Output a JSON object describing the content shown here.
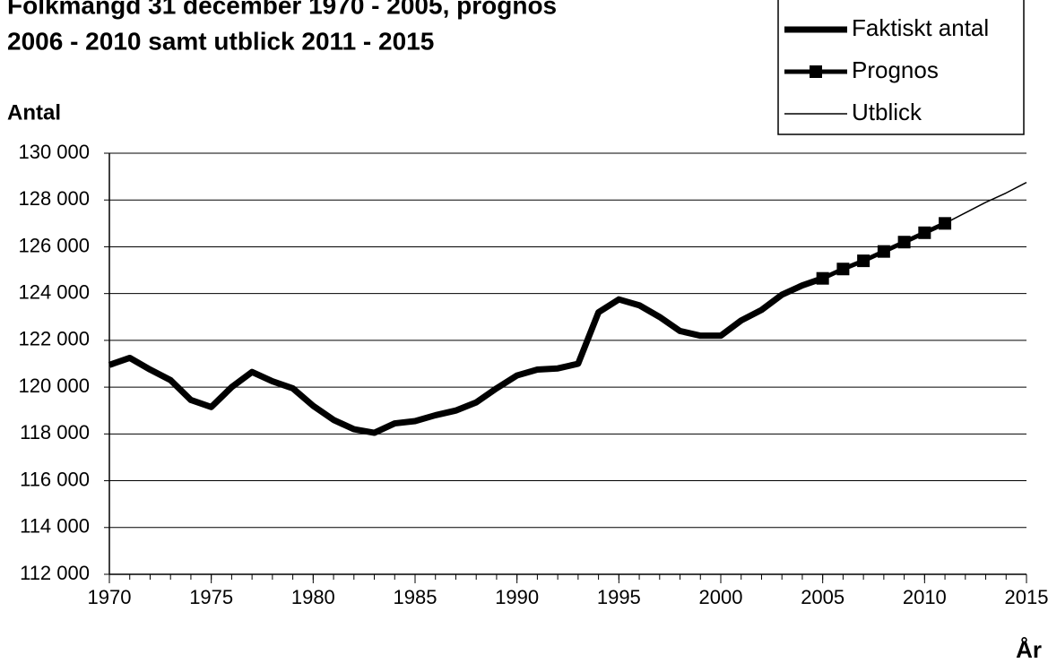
{
  "chart_data": {
    "type": "line",
    "title": [
      "Folkmängd 31 december 1970 - 2005, prognos",
      "2006 - 2010 samt utblick 2011 - 2015"
    ],
    "ylabel": "Antal",
    "xlabel": "År",
    "x": [
      1970,
      1971,
      1972,
      1973,
      1974,
      1975,
      1976,
      1977,
      1978,
      1979,
      1980,
      1981,
      1982,
      1983,
      1984,
      1985,
      1986,
      1987,
      1988,
      1989,
      1990,
      1991,
      1992,
      1993,
      1994,
      1995,
      1996,
      1997,
      1998,
      1999,
      2000,
      2001,
      2002,
      2003,
      2004,
      2005,
      2006,
      2007,
      2008,
      2009,
      2010,
      2011,
      2012,
      2013,
      2014,
      2015
    ],
    "series": [
      {
        "name": "Faktiskt antal",
        "color": "#000000",
        "values": [
          120950,
          121250,
          120750,
          120300,
          119450,
          119150,
          120000,
          120650,
          120250,
          119950,
          119200,
          118600,
          118200,
          118050,
          118450,
          118550,
          118800,
          119000,
          119350,
          119950,
          120500,
          120750,
          120800,
          121000,
          123200,
          123750,
          123500,
          123000,
          122400,
          122200,
          122200,
          122850,
          123300,
          123950,
          124350,
          124650,
          null,
          null,
          null,
          null,
          null,
          null,
          null,
          null,
          null,
          null
        ]
      },
      {
        "name": "Prognos",
        "color": "#000000",
        "values": [
          null,
          null,
          null,
          null,
          null,
          null,
          null,
          null,
          null,
          null,
          null,
          null,
          null,
          null,
          null,
          null,
          null,
          null,
          null,
          null,
          null,
          null,
          null,
          null,
          null,
          null,
          null,
          null,
          null,
          null,
          null,
          null,
          null,
          null,
          null,
          124650,
          125050,
          125400,
          125800,
          126200,
          126600,
          127000,
          null,
          null,
          null,
          null
        ]
      },
      {
        "name": "Utblick",
        "color": "#000000",
        "values": [
          null,
          null,
          null,
          null,
          null,
          null,
          null,
          null,
          null,
          null,
          null,
          null,
          null,
          null,
          null,
          null,
          null,
          null,
          null,
          null,
          null,
          null,
          null,
          null,
          null,
          null,
          null,
          null,
          null,
          null,
          null,
          null,
          null,
          null,
          null,
          null,
          null,
          null,
          null,
          null,
          null,
          127000,
          127450,
          127900,
          128300,
          128750
        ]
      }
    ],
    "xlim": [
      1970,
      2015
    ],
    "xticks": [
      1970,
      1975,
      1980,
      1985,
      1990,
      1995,
      2000,
      2005,
      2010,
      2015
    ],
    "ylim": [
      112000,
      130000
    ],
    "yticks": [
      {
        "value": 112000,
        "label": "112 000"
      },
      {
        "value": 114000,
        "label": "114 000"
      },
      {
        "value": 116000,
        "label": "116 000"
      },
      {
        "value": 118000,
        "label": "118 000"
      },
      {
        "value": 120000,
        "label": "120 000"
      },
      {
        "value": 122000,
        "label": "122 000"
      },
      {
        "value": 124000,
        "label": "124 000"
      },
      {
        "value": 126000,
        "label": "126 000"
      },
      {
        "value": 128000,
        "label": "128 000"
      },
      {
        "value": 130000,
        "label": "130 000"
      }
    ],
    "grid": true
  }
}
